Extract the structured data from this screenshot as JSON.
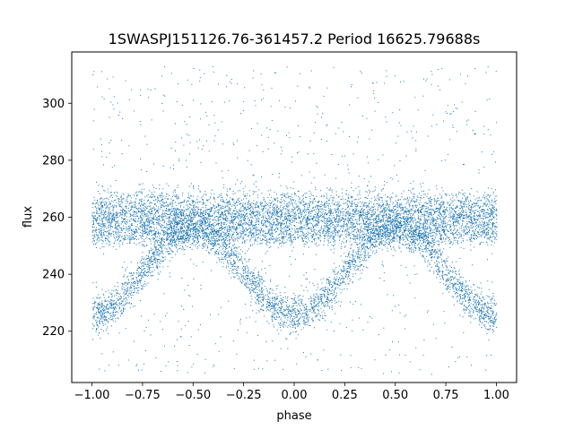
{
  "chart_data": {
    "type": "scatter",
    "title": "1SWASPJ151126.76-361457.2 Period 16625.79688s",
    "xlabel": "phase",
    "ylabel": "flux",
    "xlim": [
      -1.1,
      1.1
    ],
    "ylim": [
      202,
      318
    ],
    "xticks": [
      -1.0,
      -0.75,
      -0.5,
      -0.25,
      0.0,
      0.25,
      0.5,
      0.75,
      1.0
    ],
    "xtick_labels": [
      "−1.00",
      "−0.75",
      "−0.50",
      "−0.25",
      "0.00",
      "0.25",
      "0.50",
      "0.75",
      "1.00"
    ],
    "yticks": [
      220,
      240,
      260,
      280,
      300
    ],
    "ytick_labels": [
      "220",
      "240",
      "260",
      "280",
      "300"
    ],
    "grid": false,
    "marker_color": "#1f77b4",
    "series": [
      {
        "kind": "upper-band",
        "description_values": {
          "x_range": [
            -1.0,
            1.0
          ],
          "flux_center": 261,
          "flux_halfwidth": 9
        },
        "points": [
          [
            -1.0,
            261
          ],
          [
            -0.9,
            260
          ],
          [
            -0.75,
            262
          ],
          [
            -0.5,
            261
          ],
          [
            -0.25,
            262
          ],
          [
            0.0,
            261
          ],
          [
            0.25,
            260
          ],
          [
            0.5,
            262
          ],
          [
            0.75,
            261
          ],
          [
            1.0,
            260
          ]
        ]
      },
      {
        "kind": "secondary-band",
        "description_values": {
          "x_range": [
            -1.0,
            1.0
          ],
          "flux_center": 254,
          "flux_halfwidth": 3
        },
        "points": [
          [
            -1.0,
            254
          ],
          [
            -0.75,
            253
          ],
          [
            -0.5,
            255
          ],
          [
            -0.25,
            254
          ],
          [
            0.0,
            255
          ],
          [
            0.25,
            254
          ],
          [
            0.5,
            253
          ],
          [
            0.75,
            254
          ],
          [
            1.0,
            254
          ]
        ]
      },
      {
        "kind": "eclipse-curve",
        "description_values": {
          "flux_min": 226,
          "flux_max": 256,
          "minima_phase": [
            -1.0,
            0.0,
            1.0
          ],
          "maxima_phase": [
            -0.5,
            0.5
          ]
        },
        "points": [
          [
            -1.0,
            226
          ],
          [
            -0.875,
            230
          ],
          [
            -0.75,
            240
          ],
          [
            -0.625,
            250
          ],
          [
            -0.5,
            256
          ],
          [
            -0.375,
            250
          ],
          [
            -0.25,
            240
          ],
          [
            -0.125,
            230
          ],
          [
            0.0,
            226
          ],
          [
            0.125,
            230
          ],
          [
            0.25,
            240
          ],
          [
            0.375,
            250
          ],
          [
            0.5,
            256
          ],
          [
            0.625,
            250
          ],
          [
            0.75,
            240
          ],
          [
            0.875,
            230
          ],
          [
            1.0,
            226
          ]
        ]
      },
      {
        "kind": "outliers",
        "description_values": {
          "x_range": [
            -1.0,
            1.0
          ],
          "flux_range": [
            205,
            313
          ]
        },
        "points": [
          [
            -0.95,
            305
          ],
          [
            -0.6,
            290
          ],
          [
            -0.3,
            300
          ],
          [
            0.1,
            285
          ],
          [
            0.45,
            310
          ],
          [
            0.8,
            295
          ],
          [
            -0.8,
            212
          ],
          [
            -0.2,
            210
          ],
          [
            0.3,
            215
          ],
          [
            0.9,
            208
          ]
        ]
      }
    ]
  }
}
